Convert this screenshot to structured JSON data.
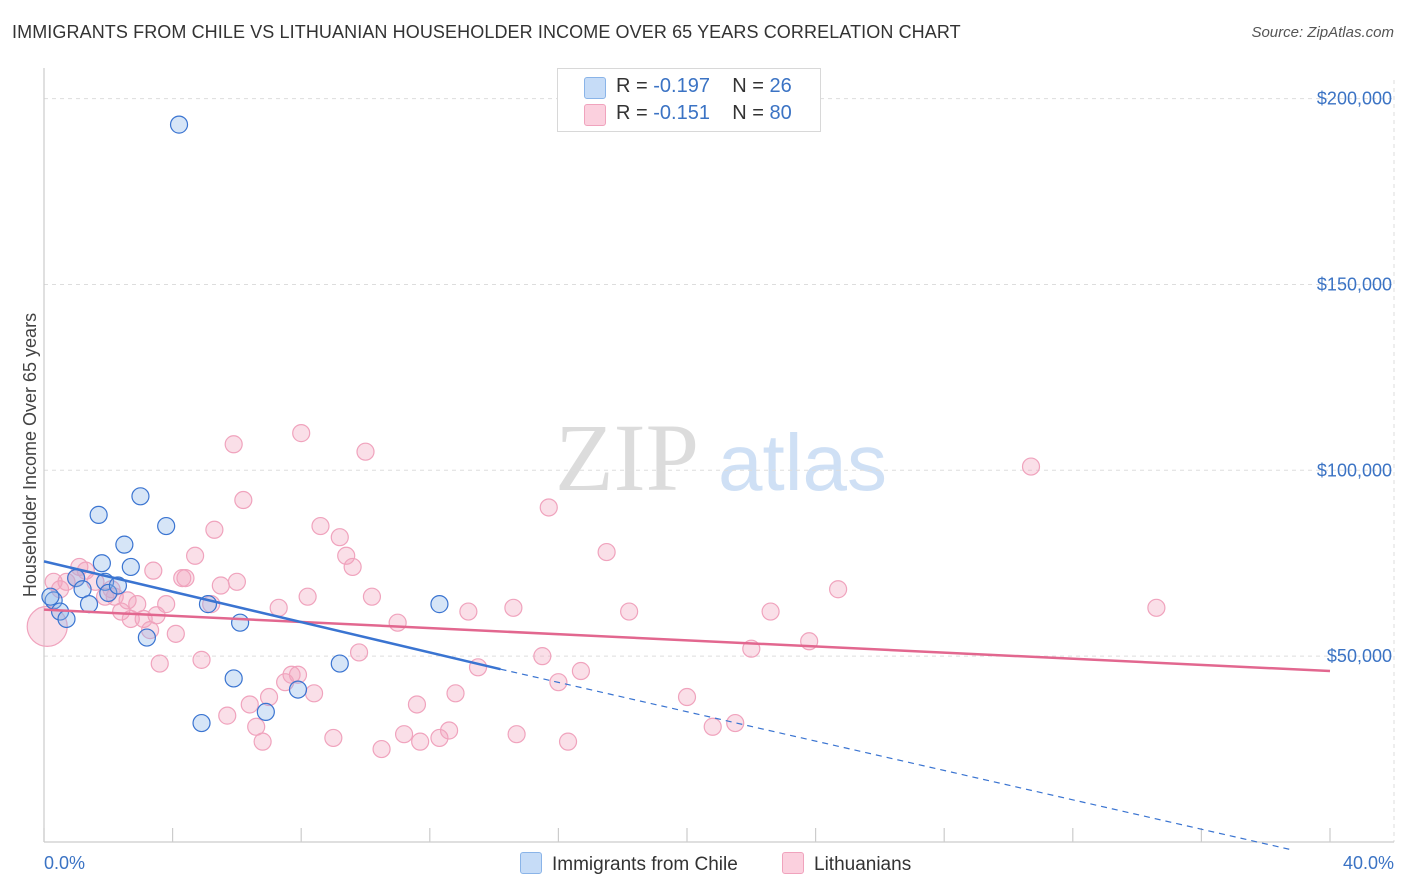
{
  "title": "IMMIGRANTS FROM CHILE VS LITHUANIAN HOUSEHOLDER INCOME OVER 65 YEARS CORRELATION CHART",
  "source": "Source: ZipAtlas.com",
  "watermark": {
    "zip": "ZIP",
    "atlas": "atlas"
  },
  "legend": {
    "r_label": "R =",
    "n_label": "N =",
    "rows": [
      {
        "r": "-0.197",
        "n": "26"
      },
      {
        "r": "-0.151",
        "n": "80"
      }
    ]
  },
  "bottom_legend": [
    "Immigrants from Chile",
    "Lithuanians"
  ],
  "chart_data": {
    "type": "scatter",
    "title": "IMMIGRANTS FROM CHILE VS LITHUANIAN HOUSEHOLDER INCOME OVER 65 YEARS CORRELATION CHART",
    "xlabel": "",
    "ylabel": "Householder Income Over 65 years",
    "xlim": [
      0,
      40
    ],
    "ylim": [
      0,
      205000
    ],
    "x_tick_labels": [
      "0.0%",
      "40.0%"
    ],
    "y_ticks": [
      50000,
      100000,
      150000,
      200000
    ],
    "y_tick_labels": [
      "$50,000",
      "$100,000",
      "$150,000",
      "$200,000"
    ],
    "colors": {
      "chile": "#8ab4e8",
      "chile_line": "#3a74d1",
      "lith": "#f0a3bd",
      "lith_line": "#e2678f"
    },
    "series": [
      {
        "name": "Immigrants from Chile",
        "r": -0.197,
        "n": 26,
        "trend": {
          "x0": 0,
          "y0": 75500,
          "x1": 14.2,
          "y1": 46500,
          "dash_to_x": 40,
          "dash_to_y": -2000
        },
        "points": [
          [
            0.3,
            65000
          ],
          [
            0.5,
            62000
          ],
          [
            0.7,
            60000
          ],
          [
            1.0,
            71000
          ],
          [
            1.2,
            68000
          ],
          [
            1.4,
            64000
          ],
          [
            1.7,
            88000
          ],
          [
            1.8,
            75000
          ],
          [
            1.9,
            70000
          ],
          [
            2.0,
            67000
          ],
          [
            2.3,
            69000
          ],
          [
            2.5,
            80000
          ],
          [
            2.7,
            74000
          ],
          [
            3.0,
            93000
          ],
          [
            3.2,
            55000
          ],
          [
            3.8,
            85000
          ],
          [
            4.2,
            193000
          ],
          [
            4.9,
            32000
          ],
          [
            5.1,
            64000
          ],
          [
            5.9,
            44000
          ],
          [
            6.1,
            59000
          ],
          [
            6.9,
            35000
          ],
          [
            7.9,
            41000
          ],
          [
            9.2,
            48000
          ],
          [
            12.3,
            64000
          ],
          [
            0.2,
            66000
          ]
        ]
      },
      {
        "name": "Lithuanians",
        "r": -0.151,
        "n": 80,
        "trend": {
          "x0": 0,
          "y0": 62500,
          "x1": 40,
          "y1": 46000
        },
        "points": [
          [
            0.1,
            58000
          ],
          [
            0.5,
            68000
          ],
          [
            0.7,
            70000
          ],
          [
            1.0,
            71000
          ],
          [
            1.3,
            73000
          ],
          [
            1.6,
            70000
          ],
          [
            1.9,
            66000
          ],
          [
            2.1,
            68000
          ],
          [
            2.4,
            62000
          ],
          [
            2.6,
            65000
          ],
          [
            2.7,
            60000
          ],
          [
            2.9,
            64000
          ],
          [
            3.1,
            60000
          ],
          [
            3.3,
            57000
          ],
          [
            3.4,
            73000
          ],
          [
            3.5,
            61000
          ],
          [
            3.6,
            48000
          ],
          [
            3.8,
            64000
          ],
          [
            4.1,
            56000
          ],
          [
            4.3,
            71000
          ],
          [
            4.4,
            71000
          ],
          [
            4.7,
            77000
          ],
          [
            4.9,
            49000
          ],
          [
            5.2,
            64000
          ],
          [
            5.3,
            84000
          ],
          [
            5.5,
            69000
          ],
          [
            5.7,
            34000
          ],
          [
            5.9,
            107000
          ],
          [
            6.0,
            70000
          ],
          [
            6.2,
            92000
          ],
          [
            6.4,
            37000
          ],
          [
            6.6,
            31000
          ],
          [
            6.8,
            27000
          ],
          [
            7.0,
            39000
          ],
          [
            7.3,
            63000
          ],
          [
            7.5,
            43000
          ],
          [
            7.7,
            45000
          ],
          [
            7.9,
            45000
          ],
          [
            8.0,
            110000
          ],
          [
            8.2,
            66000
          ],
          [
            8.4,
            40000
          ],
          [
            8.6,
            85000
          ],
          [
            9.0,
            28000
          ],
          [
            9.2,
            82000
          ],
          [
            9.4,
            77000
          ],
          [
            9.6,
            74000
          ],
          [
            9.8,
            51000
          ],
          [
            10.0,
            105000
          ],
          [
            10.2,
            66000
          ],
          [
            10.5,
            25000
          ],
          [
            11.0,
            59000
          ],
          [
            11.2,
            29000
          ],
          [
            11.6,
            37000
          ],
          [
            11.7,
            27000
          ],
          [
            12.3,
            28000
          ],
          [
            12.6,
            30000
          ],
          [
            12.8,
            40000
          ],
          [
            13.2,
            62000
          ],
          [
            13.5,
            47000
          ],
          [
            14.6,
            63000
          ],
          [
            14.7,
            29000
          ],
          [
            15.5,
            50000
          ],
          [
            15.7,
            90000
          ],
          [
            16.0,
            43000
          ],
          [
            16.3,
            27000
          ],
          [
            16.7,
            46000
          ],
          [
            17.5,
            78000
          ],
          [
            18.2,
            62000
          ],
          [
            20.0,
            39000
          ],
          [
            20.8,
            31000
          ],
          [
            21.5,
            32000
          ],
          [
            22.0,
            52000
          ],
          [
            22.6,
            62000
          ],
          [
            23.8,
            54000
          ],
          [
            24.7,
            68000
          ],
          [
            30.7,
            101000
          ],
          [
            34.6,
            63000
          ],
          [
            0.3,
            70000
          ],
          [
            1.1,
            74000
          ],
          [
            2.2,
            66000
          ]
        ]
      }
    ]
  }
}
